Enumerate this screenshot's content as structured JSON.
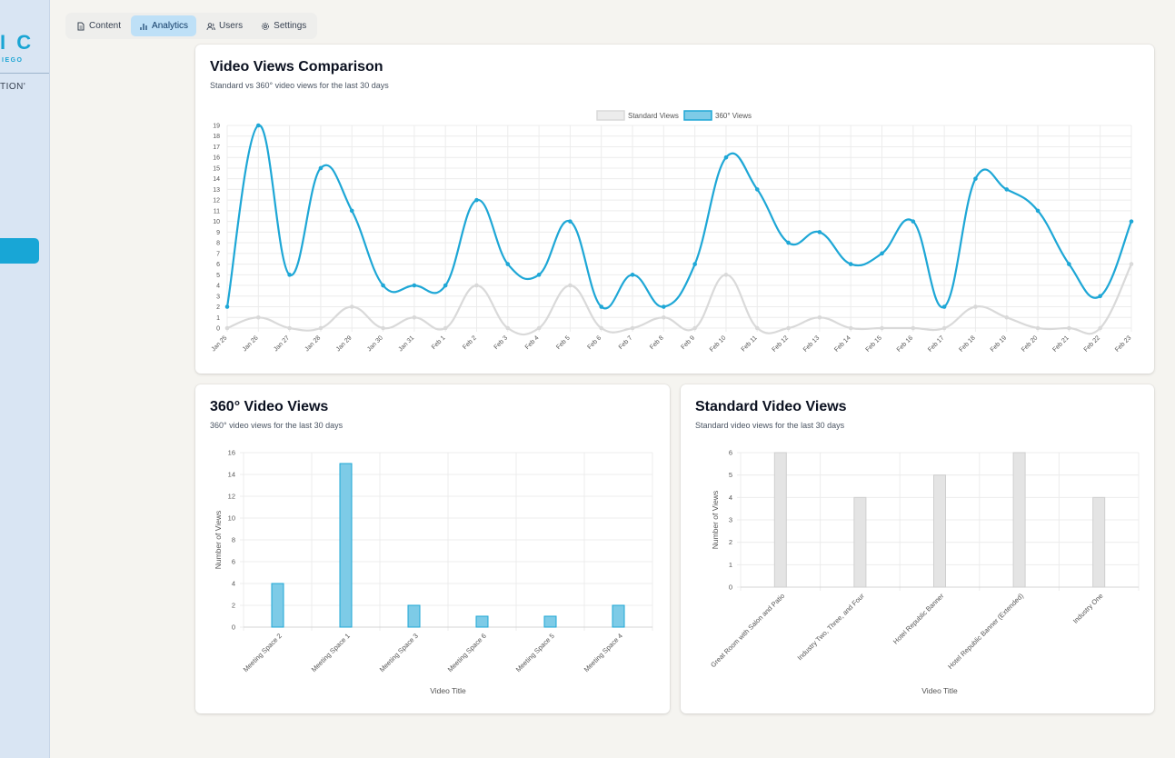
{
  "brand": {
    "logo_large": "I C",
    "logo_small": "IEGO",
    "logo_tag": "TION'"
  },
  "tabs": [
    {
      "label": "Content",
      "icon": "file-icon",
      "active": false
    },
    {
      "label": "Analytics",
      "icon": "bar-chart-icon",
      "active": true
    },
    {
      "label": "Users",
      "icon": "users-icon",
      "active": false
    },
    {
      "label": "Settings",
      "icon": "gear-icon",
      "active": false
    }
  ],
  "comparison": {
    "title": "Video Views Comparison",
    "subtitle": "Standard vs 360° video views for the last 30 days"
  },
  "views360": {
    "title": "360° Video Views",
    "subtitle": "360° video views for the last 30 days"
  },
  "standard": {
    "title": "Standard Video Views",
    "subtitle": "Standard video views for the last 30 days"
  },
  "colors": {
    "accent": "#1ea7d6",
    "accent_fill": "#7dcbe7",
    "standard_line": "#d9d9d9",
    "standard_fill": "#e4e4e4"
  },
  "chart_data": [
    {
      "type": "line",
      "title": "Video Views Comparison",
      "x": [
        "Jan 25",
        "Jan 26",
        "Jan 27",
        "Jan 28",
        "Jan 29",
        "Jan 30",
        "Jan 31",
        "Feb 1",
        "Feb 2",
        "Feb 3",
        "Feb 4",
        "Feb 5",
        "Feb 6",
        "Feb 7",
        "Feb 8",
        "Feb 9",
        "Feb 10",
        "Feb 11",
        "Feb 12",
        "Feb 13",
        "Feb 14",
        "Feb 15",
        "Feb 16",
        "Feb 17",
        "Feb 18",
        "Feb 19",
        "Feb 20",
        "Feb 21",
        "Feb 22",
        "Feb 23"
      ],
      "series": [
        {
          "name": "Standard Views",
          "values": [
            0,
            1,
            0,
            0,
            2,
            0,
            1,
            0,
            4,
            0,
            0,
            4,
            0,
            0,
            1,
            0,
            5,
            0,
            0,
            1,
            0,
            0,
            0,
            0,
            2,
            1,
            0,
            0,
            0,
            6
          ]
        },
        {
          "name": "360° Views",
          "values": [
            2,
            19,
            5,
            15,
            11,
            4,
            4,
            4,
            12,
            6,
            5,
            10,
            2,
            5,
            2,
            6,
            16,
            13,
            8,
            9,
            6,
            7,
            10,
            2,
            14,
            13,
            11,
            6,
            3,
            10
          ]
        }
      ],
      "ylim": [
        0,
        19
      ],
      "yticks": [
        0,
        1,
        2,
        3,
        4,
        5,
        6,
        7,
        8,
        9,
        10,
        11,
        12,
        13,
        14,
        15,
        16,
        17,
        18,
        19
      ],
      "legend": "top-center",
      "grid": true
    },
    {
      "type": "bar",
      "title": "360° Video Views",
      "categories": [
        "Meeting Space 2",
        "Meeting Space 1",
        "Meeting Space 3",
        "Meeting Space 6",
        "Meeting Space 5",
        "Meeting Space 4"
      ],
      "values": [
        4,
        15,
        2,
        1,
        1,
        2
      ],
      "xlabel": "Video Title",
      "ylabel": "Number of Views",
      "ylim": [
        0,
        16
      ],
      "yticks": [
        0,
        2,
        4,
        6,
        8,
        10,
        12,
        14,
        16
      ],
      "grid": true
    },
    {
      "type": "bar",
      "title": "Standard Video Views",
      "categories": [
        "Great Room with Salon and Patio",
        "Industry Two, Three, and Four",
        "Hotel Republic Banner",
        "Hotel Republic Banner (Extended)",
        "Industry One"
      ],
      "values": [
        6,
        4,
        5,
        6,
        4
      ],
      "xlabel": "Video Title",
      "ylabel": "Number of Views",
      "ylim": [
        0,
        6
      ],
      "yticks": [
        0,
        1,
        2,
        3,
        4,
        5,
        6
      ],
      "grid": true
    }
  ]
}
